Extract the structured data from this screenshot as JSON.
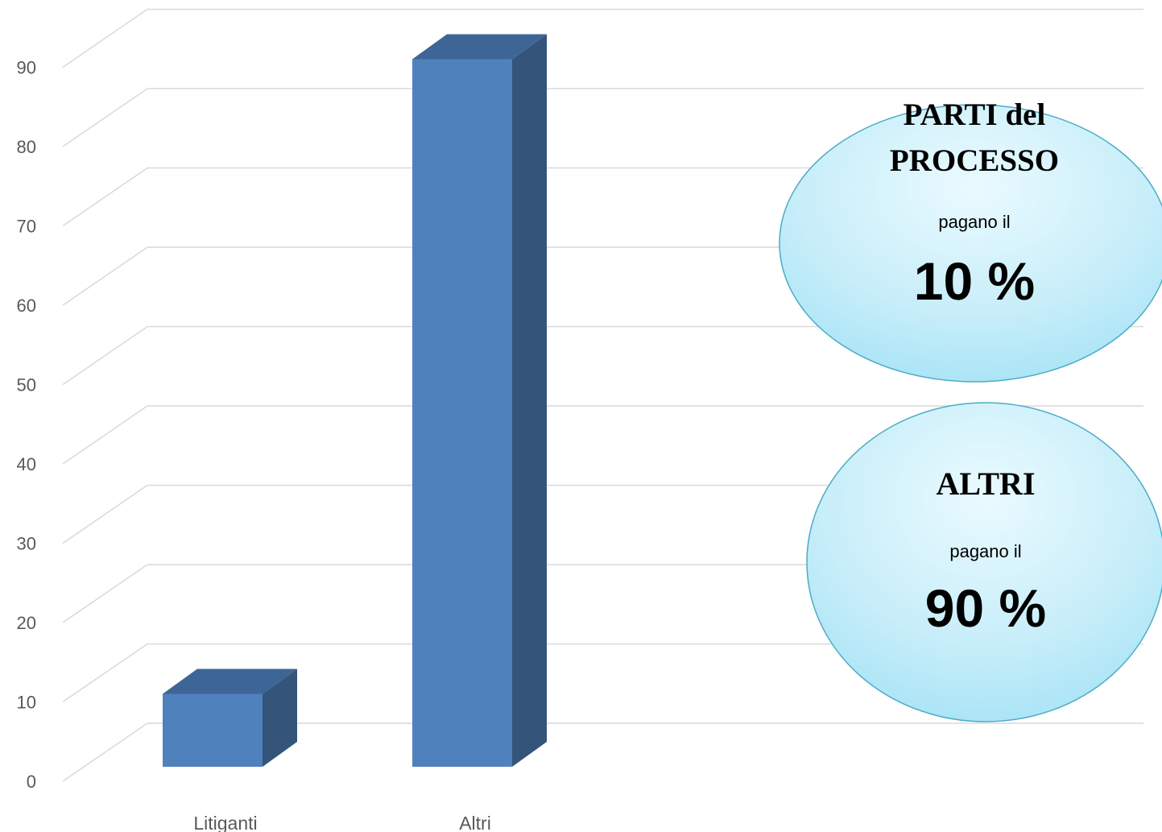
{
  "chart_data": {
    "type": "bar",
    "style": "3d-column",
    "categories": [
      "Litiganti",
      "Altri"
    ],
    "values": [
      10,
      90
    ],
    "ylim": [
      0,
      95
    ],
    "yticks": [
      0,
      10,
      20,
      30,
      40,
      50,
      60,
      70,
      80,
      90
    ],
    "grid": true,
    "bar_color": "#4f81bd",
    "annotations": [
      {
        "title_lines": [
          "PARTI del",
          "PROCESSO"
        ],
        "subtitle": "pagano il",
        "value": "10 %"
      },
      {
        "title_lines": [
          "ALTRI"
        ],
        "subtitle": "pagano il",
        "value": "90 %"
      }
    ]
  },
  "colors": {
    "bar_front": "#4f81bd",
    "bar_side": "#34547a",
    "bar_top": "#3d6696",
    "grid": "#d9d9d9",
    "bubble_fill": "#c8eef9",
    "bubble_stroke": "#4bacc6"
  }
}
